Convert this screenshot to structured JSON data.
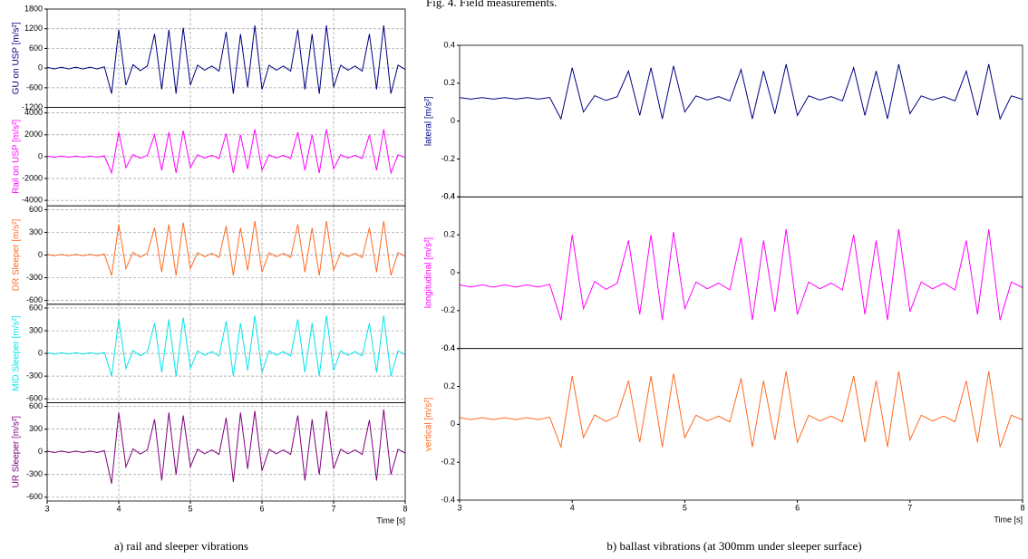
{
  "header_text": "Fig. 4. Field measurements.",
  "chart_data": [
    {
      "type": "line",
      "caption": "a) rail and sleeper vibrations",
      "xlabel": "Time [s]",
      "grid": true,
      "xlim": [
        3,
        8
      ],
      "xticks": [
        3,
        4,
        5,
        6,
        7,
        8
      ],
      "x": [
        3,
        3.1,
        3.2,
        3.3,
        3.4,
        3.5,
        3.6,
        3.7,
        3.8,
        3.9,
        4,
        4.1,
        4.2,
        4.3,
        4.4,
        4.5,
        4.6,
        4.7,
        4.8,
        4.9,
        5,
        5.1,
        5.2,
        5.3,
        5.4,
        5.5,
        5.6,
        5.7,
        5.8,
        5.9,
        6,
        6.1,
        6.2,
        6.3,
        6.4,
        6.5,
        6.6,
        6.7,
        6.8,
        6.9,
        7,
        7.1,
        7.2,
        7.3,
        7.4,
        7.5,
        7.6,
        7.7,
        7.8,
        7.9,
        8
      ],
      "panels": [
        {
          "ylabel": "GU on USP [m/s²]",
          "color": "#000080",
          "ylim": [
            -1200,
            1800
          ],
          "yticks": [
            -1200,
            -600,
            0,
            600,
            1200,
            1800
          ],
          "values": [
            26,
            -26,
            26,
            -26,
            26,
            -26,
            26,
            -26,
            39,
            -780,
            1170,
            -520,
            104,
            -78,
            65,
            1040,
            -650,
            1170,
            -780,
            1235,
            -520,
            91,
            -65,
            65,
            -91,
            1105,
            -780,
            1040,
            -585,
            1300,
            -650,
            91,
            -65,
            65,
            -91,
            1170,
            -650,
            1040,
            -780,
            1300,
            -585,
            91,
            -65,
            65,
            -91,
            1040,
            -650,
            1300,
            -780,
            91,
            -39
          ]
        },
        {
          "ylabel": "Rail on USP [m/s²]",
          "color": "#ff00ff",
          "ylim": [
            -4500,
            4500
          ],
          "yticks": [
            -4000,
            -2000,
            0,
            2000,
            4000
          ],
          "values": [
            50,
            -50,
            50,
            -50,
            50,
            -50,
            50,
            -50,
            75,
            -1500,
            2250,
            -1000,
            200,
            -150,
            125,
            2000,
            -1250,
            2250,
            -1500,
            2375,
            -1000,
            175,
            -125,
            125,
            -175,
            2125,
            -1500,
            2000,
            -1125,
            2500,
            -1250,
            175,
            -125,
            125,
            -175,
            2250,
            -1250,
            2000,
            -1500,
            2500,
            -1125,
            175,
            -125,
            125,
            -175,
            2000,
            -1250,
            2500,
            -1500,
            175,
            -75
          ]
        },
        {
          "ylabel": "DR Sleeper [m/s²]",
          "color": "#ff6a20",
          "ylim": [
            -650,
            650
          ],
          "yticks": [
            -600,
            -300,
            0,
            300,
            600
          ],
          "values": [
            9,
            -9,
            9,
            -9,
            9,
            -9,
            9,
            -9,
            14,
            -270,
            405,
            -180,
            36,
            -27,
            23,
            360,
            -225,
            405,
            -270,
            428,
            -180,
            32,
            -23,
            23,
            -32,
            383,
            -270,
            360,
            -203,
            450,
            -225,
            32,
            -23,
            23,
            -32,
            405,
            -225,
            360,
            -270,
            450,
            -203,
            32,
            -23,
            23,
            -32,
            360,
            -225,
            450,
            -270,
            32,
            -14
          ]
        },
        {
          "ylabel": "MID Sleeper [m/s²]",
          "color": "#00e5ee",
          "ylim": [
            -650,
            650
          ],
          "yticks": [
            -600,
            -300,
            0,
            300,
            600
          ],
          "values": [
            10,
            -10,
            10,
            -10,
            10,
            -10,
            10,
            -10,
            15,
            -300,
            450,
            -200,
            40,
            -30,
            25,
            400,
            -250,
            450,
            -300,
            475,
            -200,
            35,
            -25,
            25,
            -35,
            425,
            -300,
            400,
            -225,
            500,
            -250,
            35,
            -25,
            25,
            -35,
            450,
            -250,
            400,
            -300,
            500,
            -225,
            35,
            -25,
            25,
            -35,
            400,
            -250,
            500,
            -300,
            35,
            -15
          ]
        },
        {
          "ylabel": "UR Sleeper [m/s²]",
          "color": "#800080",
          "ylim": [
            -650,
            650
          ],
          "yticks": [
            -600,
            -300,
            0,
            300,
            600
          ],
          "values": [
            10,
            -10,
            10,
            -10,
            10,
            -10,
            10,
            -10,
            15,
            -420,
            520,
            -200,
            40,
            -30,
            25,
            430,
            -380,
            520,
            -300,
            480,
            -200,
            35,
            -25,
            25,
            -35,
            450,
            -400,
            520,
            -225,
            540,
            -250,
            35,
            -25,
            25,
            -35,
            480,
            -380,
            430,
            -300,
            540,
            -225,
            35,
            -25,
            25,
            -35,
            420,
            -380,
            560,
            -300,
            35,
            -15
          ]
        }
      ]
    },
    {
      "type": "line",
      "caption": "b) ballast vibrations (at 300mm under sleeper surface)",
      "xlabel": "Time [s]",
      "grid": false,
      "xlim": [
        3,
        8
      ],
      "xticks": [
        3,
        4,
        5,
        6,
        7,
        8
      ],
      "x": [
        3,
        3.1,
        3.2,
        3.3,
        3.4,
        3.5,
        3.6,
        3.7,
        3.8,
        3.9,
        4,
        4.1,
        4.2,
        4.3,
        4.4,
        4.5,
        4.6,
        4.7,
        4.8,
        4.9,
        5,
        5.1,
        5.2,
        5.3,
        5.4,
        5.5,
        5.6,
        5.7,
        5.8,
        5.9,
        6,
        6.1,
        6.2,
        6.3,
        6.4,
        6.5,
        6.6,
        6.7,
        6.8,
        6.9,
        7,
        7.1,
        7.2,
        7.3,
        7.4,
        7.5,
        7.6,
        7.7,
        7.8,
        7.9,
        8
      ],
      "panels": [
        {
          "ylabel": "lateral [m/s²]",
          "color": "#000080",
          "ylim": [
            -0.4,
            0.4
          ],
          "yticks": [
            -0.4,
            -0.2,
            0,
            0.2,
            0.4
          ],
          "values": [
            0.124,
            0.116,
            0.124,
            0.116,
            0.124,
            0.116,
            0.124,
            0.116,
            0.125,
            0.012,
            0.282,
            0.048,
            0.134,
            0.109,
            0.129,
            0.264,
            0.03,
            0.282,
            0.012,
            0.291,
            0.048,
            0.133,
            0.111,
            0.129,
            0.107,
            0.273,
            0.012,
            0.264,
            0.039,
            0.3,
            0.03,
            0.133,
            0.111,
            0.129,
            0.107,
            0.282,
            0.03,
            0.264,
            0.012,
            0.3,
            0.039,
            0.133,
            0.111,
            0.129,
            0.107,
            0.264,
            0.03,
            0.3,
            0.012,
            0.133,
            0.115
          ]
        },
        {
          "ylabel": "longitudinal [m/s²]",
          "color": "#ff00ff",
          "ylim": [
            -0.4,
            0.4
          ],
          "yticks": [
            -0.4,
            -0.2,
            0,
            0.2,
            0.4
          ],
          "values": [
            -0.064,
            -0.076,
            -0.064,
            -0.076,
            -0.064,
            -0.076,
            -0.064,
            -0.076,
            -0.061,
            -0.25,
            0.2,
            -0.19,
            -0.046,
            -0.088,
            -0.055,
            0.17,
            -0.22,
            0.2,
            -0.25,
            0.215,
            -0.19,
            -0.049,
            -0.085,
            -0.055,
            -0.091,
            0.185,
            -0.25,
            0.17,
            -0.205,
            0.23,
            -0.22,
            -0.049,
            -0.085,
            -0.055,
            -0.091,
            0.2,
            -0.22,
            0.17,
            -0.25,
            0.23,
            -0.205,
            -0.049,
            -0.085,
            -0.055,
            -0.091,
            0.17,
            -0.22,
            0.23,
            -0.25,
            -0.049,
            -0.079
          ]
        },
        {
          "ylabel": "vertical [m/s²]",
          "color": "#ff6a20",
          "ylim": [
            -0.4,
            0.4
          ],
          "yticks": [
            -0.4,
            -0.2,
            0,
            0.2,
            0.4
          ],
          "values": [
            0.035,
            0.025,
            0.035,
            0.025,
            0.035,
            0.025,
            0.035,
            0.025,
            0.038,
            -0.12,
            0.255,
            -0.07,
            0.05,
            0.015,
            0.043,
            0.23,
            -0.095,
            0.255,
            -0.12,
            0.268,
            -0.07,
            0.048,
            0.018,
            0.043,
            0.013,
            0.243,
            -0.12,
            0.23,
            -0.083,
            0.28,
            -0.095,
            0.048,
            0.018,
            0.043,
            0.013,
            0.255,
            -0.095,
            0.23,
            -0.12,
            0.28,
            -0.083,
            0.048,
            0.018,
            0.043,
            0.013,
            0.23,
            -0.095,
            0.28,
            -0.12,
            0.048,
            0.023
          ]
        }
      ]
    }
  ]
}
